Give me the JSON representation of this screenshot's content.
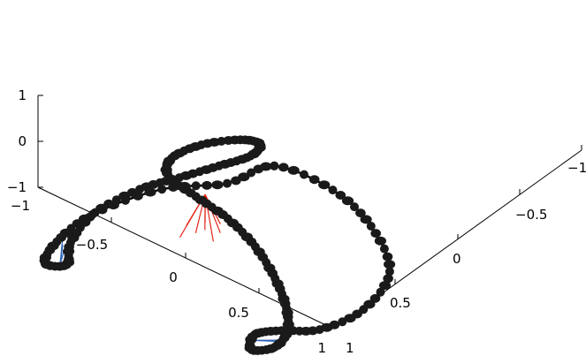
{
  "chart_data": {
    "type": "scatter",
    "dimensions": 3,
    "title": "",
    "xlabel": "",
    "ylabel": "",
    "zlabel": "",
    "grid": false,
    "xlim": [
      -1,
      1
    ],
    "ylim": [
      -1,
      1
    ],
    "zlim": [
      -1,
      1
    ],
    "x_ticks": [
      "−1",
      "−0.5",
      "0",
      "0.5",
      "1"
    ],
    "y_ticks": [
      "−1",
      "−0.5",
      "0",
      "0.5",
      "1"
    ],
    "z_ticks": [
      "−1",
      "0",
      "1"
    ],
    "curve": {
      "description": "closed 3D curve drawn as a black line with dense black markers",
      "color": "#000000",
      "points": [
        [
          -0.14,
          0.88,
          0.08
        ],
        [
          0.24,
          0.9,
          0.1
        ],
        [
          0.6,
          0.78,
          0.1
        ],
        [
          0.92,
          0.55,
          0.05
        ],
        [
          1.02,
          0.22,
          0.02
        ],
        [
          0.95,
          -0.05,
          0.0
        ],
        [
          0.8,
          -0.18,
          0.0
        ],
        [
          0.72,
          -0.3,
          0.02
        ],
        [
          0.8,
          -0.42,
          0.05
        ],
        [
          0.88,
          -0.33,
          0.05
        ],
        [
          0.84,
          -0.18,
          0.04
        ],
        [
          0.7,
          -0.02,
          0.02
        ],
        [
          0.48,
          0.15,
          0.0
        ],
        [
          0.22,
          0.3,
          0.0
        ],
        [
          -0.05,
          0.4,
          0.0
        ],
        [
          -0.3,
          0.44,
          0.02
        ],
        [
          -0.52,
          0.48,
          0.05
        ],
        [
          -0.6,
          0.6,
          0.08
        ],
        [
          -0.55,
          0.78,
          0.1
        ],
        [
          -0.42,
          0.94,
          0.1
        ],
        [
          -0.32,
          0.98,
          0.08
        ],
        [
          -0.3,
          0.88,
          0.05
        ],
        [
          -0.38,
          0.72,
          0.02
        ],
        [
          -0.48,
          0.52,
          0.0
        ],
        [
          -0.58,
          0.32,
          -0.02
        ],
        [
          -0.63,
          0.02,
          -0.02
        ],
        [
          -0.56,
          -0.26,
          -0.02
        ],
        [
          -0.45,
          -0.42,
          -0.02
        ],
        [
          -0.55,
          -0.48,
          -0.02
        ],
        [
          -0.62,
          -0.3,
          -0.02
        ],
        [
          -0.63,
          0.0,
          -0.02
        ],
        [
          -0.48,
          0.38,
          0.02
        ],
        [
          -0.24,
          0.62,
          0.05
        ],
        [
          -0.14,
          0.88,
          0.08
        ]
      ]
    },
    "links_red": {
      "description": "cluster of red connecting lines",
      "color": "#e4261a",
      "from": [
        -0.28,
        0.49,
        0.0
      ],
      "to": [
        [
          -0.12,
          0.3,
          0.0
        ],
        [
          -0.08,
          0.25,
          0.0
        ],
        [
          -0.1,
          0.2,
          0.0
        ],
        [
          -0.14,
          0.12,
          0.0
        ],
        [
          -0.05,
          0.34,
          0.0
        ],
        [
          0.0,
          0.28,
          0.0
        ],
        [
          -0.18,
          0.22,
          0.0
        ],
        [
          0.02,
          0.2,
          0.0
        ]
      ]
    },
    "links_blue_1": {
      "description": "blue connecting lines at right loop",
      "color": "#2a5fb5",
      "from": [
        0.75,
        -0.35,
        0.04
      ],
      "to": [
        [
          0.82,
          -0.3,
          0.05
        ],
        [
          0.86,
          -0.28,
          0.05
        ],
        [
          0.88,
          -0.25,
          0.05
        ]
      ]
    },
    "links_blue_2": {
      "description": "blue connecting lines at lower-left loop",
      "color": "#2a5fb5",
      "from": [
        -0.48,
        -0.44,
        -0.02
      ],
      "to": [
        [
          -0.55,
          -0.32,
          -0.02
        ],
        [
          -0.58,
          -0.3,
          -0.02
        ],
        [
          -0.6,
          -0.28,
          -0.02
        ]
      ]
    }
  }
}
